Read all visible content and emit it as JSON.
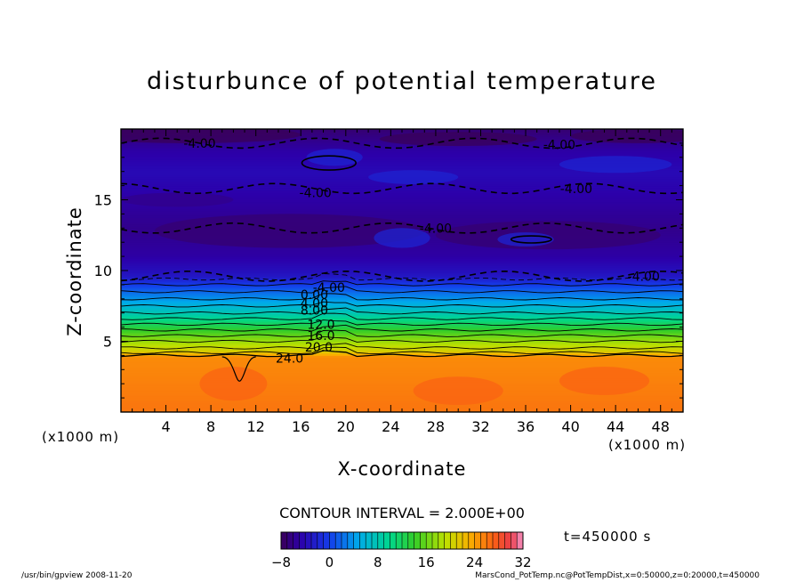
{
  "chart_data": {
    "type": "heatmap",
    "title": "disturbunce of potential temperature",
    "xlabel": "X-coordinate",
    "ylabel": "Z-coordinate",
    "x_unit_label": "(x1000 m)",
    "xlim": [
      0,
      50
    ],
    "ylim": [
      0,
      20
    ],
    "x_ticks": [
      4,
      8,
      12,
      16,
      20,
      24,
      28,
      32,
      36,
      40,
      44,
      48
    ],
    "y_ticks": [
      5,
      10,
      15
    ],
    "contour_interval_label": "CONTOUR INTERVAL = 2.000E+00",
    "colorbar": {
      "min": -8,
      "max": 32,
      "tick_values": [
        -8,
        0,
        8,
        16,
        24,
        32
      ],
      "tick_labels": [
        "−8",
        "0",
        "8",
        "16",
        "24",
        "32"
      ]
    },
    "time_label": "t=450000 s",
    "vertical_profile": [
      {
        "z": 0.5,
        "value": 26
      },
      {
        "z": 3.9,
        "value": 25
      },
      {
        "z": 4.3,
        "value": 21
      },
      {
        "z": 5.0,
        "value": 18
      },
      {
        "z": 6.0,
        "value": 13
      },
      {
        "z": 7.0,
        "value": 8
      },
      {
        "z": 8.0,
        "value": 4
      },
      {
        "z": 9.0,
        "value": 0
      },
      {
        "z": 9.6,
        "value": -3
      },
      {
        "z": 11.0,
        "value": -5
      },
      {
        "z": 13.0,
        "value": -6
      },
      {
        "z": 15.0,
        "value": -5
      },
      {
        "z": 17.0,
        "value": -4
      },
      {
        "z": 18.5,
        "value": -5
      },
      {
        "z": 20.0,
        "value": -7
      }
    ],
    "contour_labels": [
      {
        "text": "-4.00",
        "x": 18.5,
        "z": 8.8
      },
      {
        "text": "0.00",
        "x": 17.2,
        "z": 8.3
      },
      {
        "text": "4.00",
        "x": 17.2,
        "z": 7.7
      },
      {
        "text": "8.00",
        "x": 17.2,
        "z": 7.2
      },
      {
        "text": "12.0",
        "x": 17.8,
        "z": 6.2
      },
      {
        "text": "16.0",
        "x": 17.8,
        "z": 5.4
      },
      {
        "text": "20.0",
        "x": 17.6,
        "z": 4.6
      },
      {
        "text": "24.0",
        "x": 15.0,
        "z": 3.8
      },
      {
        "text": "-4.00",
        "x": 7.0,
        "z": 19.0
      },
      {
        "text": "-4.00",
        "x": 39.0,
        "z": 18.9
      },
      {
        "text": "-4.00",
        "x": 17.3,
        "z": 15.5
      },
      {
        "text": "-4.00",
        "x": 40.5,
        "z": 15.8
      },
      {
        "text": "-4.00",
        "x": 28.0,
        "z": 13.0
      },
      {
        "text": "-4.00",
        "x": 46.5,
        "z": 9.6
      }
    ]
  },
  "footer": {
    "left": "/usr/bin/gpview  2008-11-20",
    "right": "MarsCond_PotTemp.nc@PotTempDist,x=0:50000,z=0:20000,t=450000"
  }
}
